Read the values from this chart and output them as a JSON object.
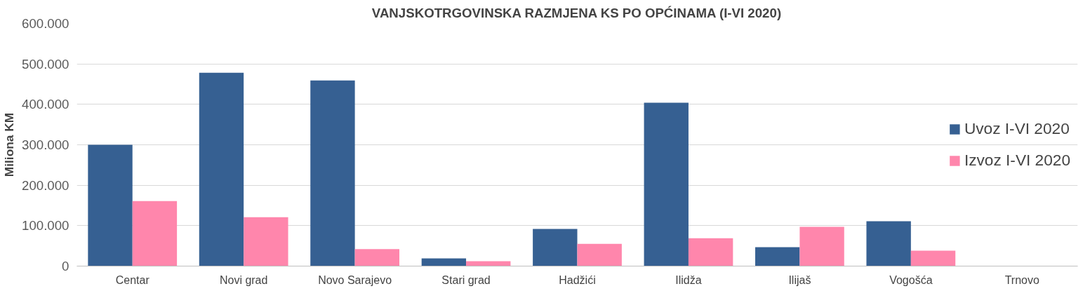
{
  "chart_data": {
    "type": "bar",
    "title": "VANJSKOTRGOVINSKA RAZMJENA KS PO OPĆINAMA (I-VI 2020)",
    "ylabel": "Miliona KM",
    "categories": [
      "Centar",
      "Novi grad",
      "Novo Sarajevo",
      "Stari grad",
      "Hadžići",
      "Ilidža",
      "Ilijaš",
      "Vogošća",
      "Trnovo"
    ],
    "series": [
      {
        "name": "Uvoz I-VI 2020",
        "color": "#366092",
        "values": [
          300000,
          478000,
          459000,
          19000,
          92000,
          404000,
          47000,
          111000,
          0
        ]
      },
      {
        "name": "Izvoz I-VI 2020",
        "color": "#ff86ac",
        "values": [
          161000,
          121000,
          42000,
          12000,
          55000,
          69000,
          97000,
          38000,
          0
        ]
      }
    ],
    "ylim": [
      0,
      600000
    ],
    "yticks": [
      {
        "value": 0,
        "label": "0"
      },
      {
        "value": 100000,
        "label": "100.000"
      },
      {
        "value": 200000,
        "label": "200.000"
      },
      {
        "value": 300000,
        "label": "300.000"
      },
      {
        "value": 400000,
        "label": "400.000"
      },
      {
        "value": 500000,
        "label": "500.000"
      },
      {
        "value": 600000,
        "label": "600.000"
      }
    ],
    "grid": "y",
    "legend": "right"
  }
}
